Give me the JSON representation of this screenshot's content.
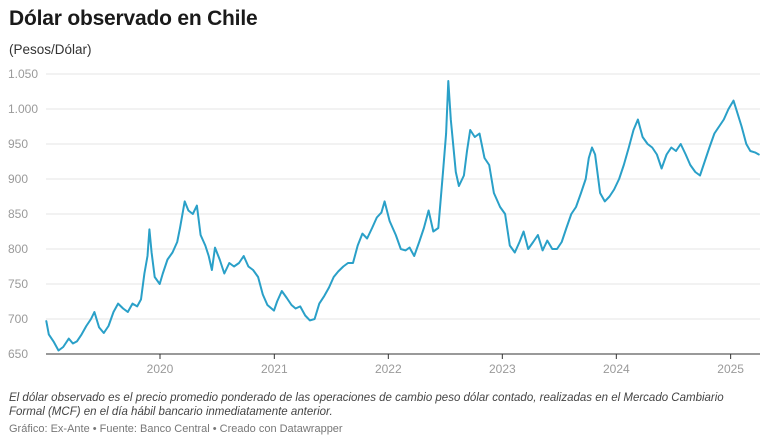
{
  "title": "Dólar observado en Chile",
  "subtitle": "(Pesos/Dólar)",
  "note": "El dólar observado es el precio promedio ponderado de las operaciones de cambio peso dólar contado, realizadas en el Mercado Cambiario Formal (MCF) en el día hábil bancario inmediatamente anterior.",
  "credit": "Gráfico: Ex-Ante • Fuente: Banco Central • Creado con Datawrapper",
  "colors": {
    "line": "#2aa0c8",
    "grid": "#e4e4e4",
    "axis": "#333333"
  },
  "chart_data": {
    "type": "line",
    "title": "Dólar observado en Chile",
    "ylabel": "(Pesos/Dólar)",
    "ylim": [
      650,
      1050
    ],
    "y_ticks": [
      "650",
      "700",
      "750",
      "800",
      "850",
      "900",
      "950",
      "1.000",
      "1.050"
    ],
    "y_tick_values": [
      650,
      700,
      750,
      800,
      850,
      900,
      950,
      1000,
      1050
    ],
    "x_ticks": [
      "2020",
      "2021",
      "2022",
      "2023",
      "2024",
      "2025"
    ],
    "x_tick_values": [
      "2020-01-01",
      "2021-01-01",
      "2022-01-01",
      "2023-01-01",
      "2024-01-01",
      "2025-01-01"
    ],
    "xlim": [
      "2019-01-01",
      "2025-04-05"
    ],
    "grid": true,
    "series": [
      {
        "values": [
          [
            "2019-01-02",
            697
          ],
          [
            "2019-01-10",
            678
          ],
          [
            "2019-01-25",
            668
          ],
          [
            "2019-02-10",
            655
          ],
          [
            "2019-02-25",
            660
          ],
          [
            "2019-03-15",
            672
          ],
          [
            "2019-03-28",
            665
          ],
          [
            "2019-04-10",
            668
          ],
          [
            "2019-04-25",
            678
          ],
          [
            "2019-05-10",
            690
          ],
          [
            "2019-05-25",
            700
          ],
          [
            "2019-06-05",
            710
          ],
          [
            "2019-06-20",
            688
          ],
          [
            "2019-07-05",
            680
          ],
          [
            "2019-07-20",
            690
          ],
          [
            "2019-08-05",
            710
          ],
          [
            "2019-08-20",
            722
          ],
          [
            "2019-09-05",
            715
          ],
          [
            "2019-09-20",
            710
          ],
          [
            "2019-10-05",
            722
          ],
          [
            "2019-10-20",
            718
          ],
          [
            "2019-11-01",
            728
          ],
          [
            "2019-11-12",
            765
          ],
          [
            "2019-11-22",
            790
          ],
          [
            "2019-11-28",
            828
          ],
          [
            "2019-12-05",
            795
          ],
          [
            "2019-12-15",
            760
          ],
          [
            "2019-12-31",
            750
          ],
          [
            "2020-01-10",
            765
          ],
          [
            "2020-01-25",
            785
          ],
          [
            "2020-02-10",
            795
          ],
          [
            "2020-02-25",
            810
          ],
          [
            "2020-03-05",
            830
          ],
          [
            "2020-03-15",
            855
          ],
          [
            "2020-03-20",
            868
          ],
          [
            "2020-04-01",
            855
          ],
          [
            "2020-04-15",
            850
          ],
          [
            "2020-04-28",
            862
          ],
          [
            "2020-05-10",
            820
          ],
          [
            "2020-05-25",
            805
          ],
          [
            "2020-06-05",
            790
          ],
          [
            "2020-06-15",
            770
          ],
          [
            "2020-06-25",
            802
          ],
          [
            "2020-07-10",
            785
          ],
          [
            "2020-07-25",
            765
          ],
          [
            "2020-08-10",
            780
          ],
          [
            "2020-08-25",
            775
          ],
          [
            "2020-09-10",
            780
          ],
          [
            "2020-09-25",
            790
          ],
          [
            "2020-10-10",
            775
          ],
          [
            "2020-10-25",
            770
          ],
          [
            "2020-11-10",
            760
          ],
          [
            "2020-11-25",
            735
          ],
          [
            "2020-12-10",
            720
          ],
          [
            "2020-12-31",
            712
          ],
          [
            "2021-01-10",
            725
          ],
          [
            "2021-01-25",
            740
          ],
          [
            "2021-02-10",
            730
          ],
          [
            "2021-02-25",
            720
          ],
          [
            "2021-03-10",
            715
          ],
          [
            "2021-03-25",
            718
          ],
          [
            "2021-04-10",
            705
          ],
          [
            "2021-04-25",
            698
          ],
          [
            "2021-05-10",
            700
          ],
          [
            "2021-05-25",
            722
          ],
          [
            "2021-06-10",
            733
          ],
          [
            "2021-06-25",
            745
          ],
          [
            "2021-07-10",
            760
          ],
          [
            "2021-07-25",
            768
          ],
          [
            "2021-08-10",
            775
          ],
          [
            "2021-08-25",
            780
          ],
          [
            "2021-09-10",
            780
          ],
          [
            "2021-09-25",
            805
          ],
          [
            "2021-10-10",
            822
          ],
          [
            "2021-10-25",
            815
          ],
          [
            "2021-11-10",
            830
          ],
          [
            "2021-11-25",
            845
          ],
          [
            "2021-12-10",
            852
          ],
          [
            "2021-12-20",
            868
          ],
          [
            "2022-01-05",
            840
          ],
          [
            "2022-01-25",
            820
          ],
          [
            "2022-02-10",
            800
          ],
          [
            "2022-02-25",
            798
          ],
          [
            "2022-03-10",
            802
          ],
          [
            "2022-03-25",
            790
          ],
          [
            "2022-04-10",
            810
          ],
          [
            "2022-04-25",
            830
          ],
          [
            "2022-05-10",
            855
          ],
          [
            "2022-05-25",
            825
          ],
          [
            "2022-06-10",
            830
          ],
          [
            "2022-06-25",
            910
          ],
          [
            "2022-07-05",
            965
          ],
          [
            "2022-07-12",
            1040
          ],
          [
            "2022-07-20",
            985
          ],
          [
            "2022-08-05",
            910
          ],
          [
            "2022-08-15",
            890
          ],
          [
            "2022-08-31",
            905
          ],
          [
            "2022-09-10",
            940
          ],
          [
            "2022-09-20",
            970
          ],
          [
            "2022-10-05",
            960
          ],
          [
            "2022-10-20",
            965
          ],
          [
            "2022-11-05",
            930
          ],
          [
            "2022-11-20",
            920
          ],
          [
            "2022-12-05",
            880
          ],
          [
            "2022-12-25",
            860
          ],
          [
            "2023-01-10",
            850
          ],
          [
            "2023-01-25",
            805
          ],
          [
            "2023-02-10",
            795
          ],
          [
            "2023-02-25",
            810
          ],
          [
            "2023-03-10",
            825
          ],
          [
            "2023-03-25",
            800
          ],
          [
            "2023-04-10",
            810
          ],
          [
            "2023-04-25",
            820
          ],
          [
            "2023-05-10",
            798
          ],
          [
            "2023-05-25",
            812
          ],
          [
            "2023-06-10",
            800
          ],
          [
            "2023-06-25",
            800
          ],
          [
            "2023-07-10",
            810
          ],
          [
            "2023-07-25",
            830
          ],
          [
            "2023-08-10",
            850
          ],
          [
            "2023-08-25",
            860
          ],
          [
            "2023-09-10",
            880
          ],
          [
            "2023-09-25",
            900
          ],
          [
            "2023-10-05",
            930
          ],
          [
            "2023-10-15",
            945
          ],
          [
            "2023-10-25",
            935
          ],
          [
            "2023-11-10",
            880
          ],
          [
            "2023-11-25",
            868
          ],
          [
            "2023-12-10",
            875
          ],
          [
            "2023-12-25",
            885
          ],
          [
            "2024-01-10",
            900
          ],
          [
            "2024-01-25",
            920
          ],
          [
            "2024-02-10",
            945
          ],
          [
            "2024-02-25",
            970
          ],
          [
            "2024-03-10",
            985
          ],
          [
            "2024-03-25",
            960
          ],
          [
            "2024-04-10",
            950
          ],
          [
            "2024-04-25",
            945
          ],
          [
            "2024-05-10",
            935
          ],
          [
            "2024-05-25",
            915
          ],
          [
            "2024-06-10",
            935
          ],
          [
            "2024-06-25",
            945
          ],
          [
            "2024-07-10",
            940
          ],
          [
            "2024-07-25",
            950
          ],
          [
            "2024-08-10",
            935
          ],
          [
            "2024-08-25",
            920
          ],
          [
            "2024-09-10",
            910
          ],
          [
            "2024-09-25",
            905
          ],
          [
            "2024-10-10",
            925
          ],
          [
            "2024-10-25",
            945
          ],
          [
            "2024-11-10",
            965
          ],
          [
            "2024-11-25",
            975
          ],
          [
            "2024-12-10",
            985
          ],
          [
            "2024-12-25",
            1000
          ],
          [
            "2025-01-10",
            1012
          ],
          [
            "2025-01-20",
            998
          ],
          [
            "2025-02-05",
            975
          ],
          [
            "2025-02-20",
            950
          ],
          [
            "2025-03-05",
            940
          ],
          [
            "2025-03-20",
            938
          ],
          [
            "2025-04-01",
            935
          ]
        ]
      }
    ]
  }
}
